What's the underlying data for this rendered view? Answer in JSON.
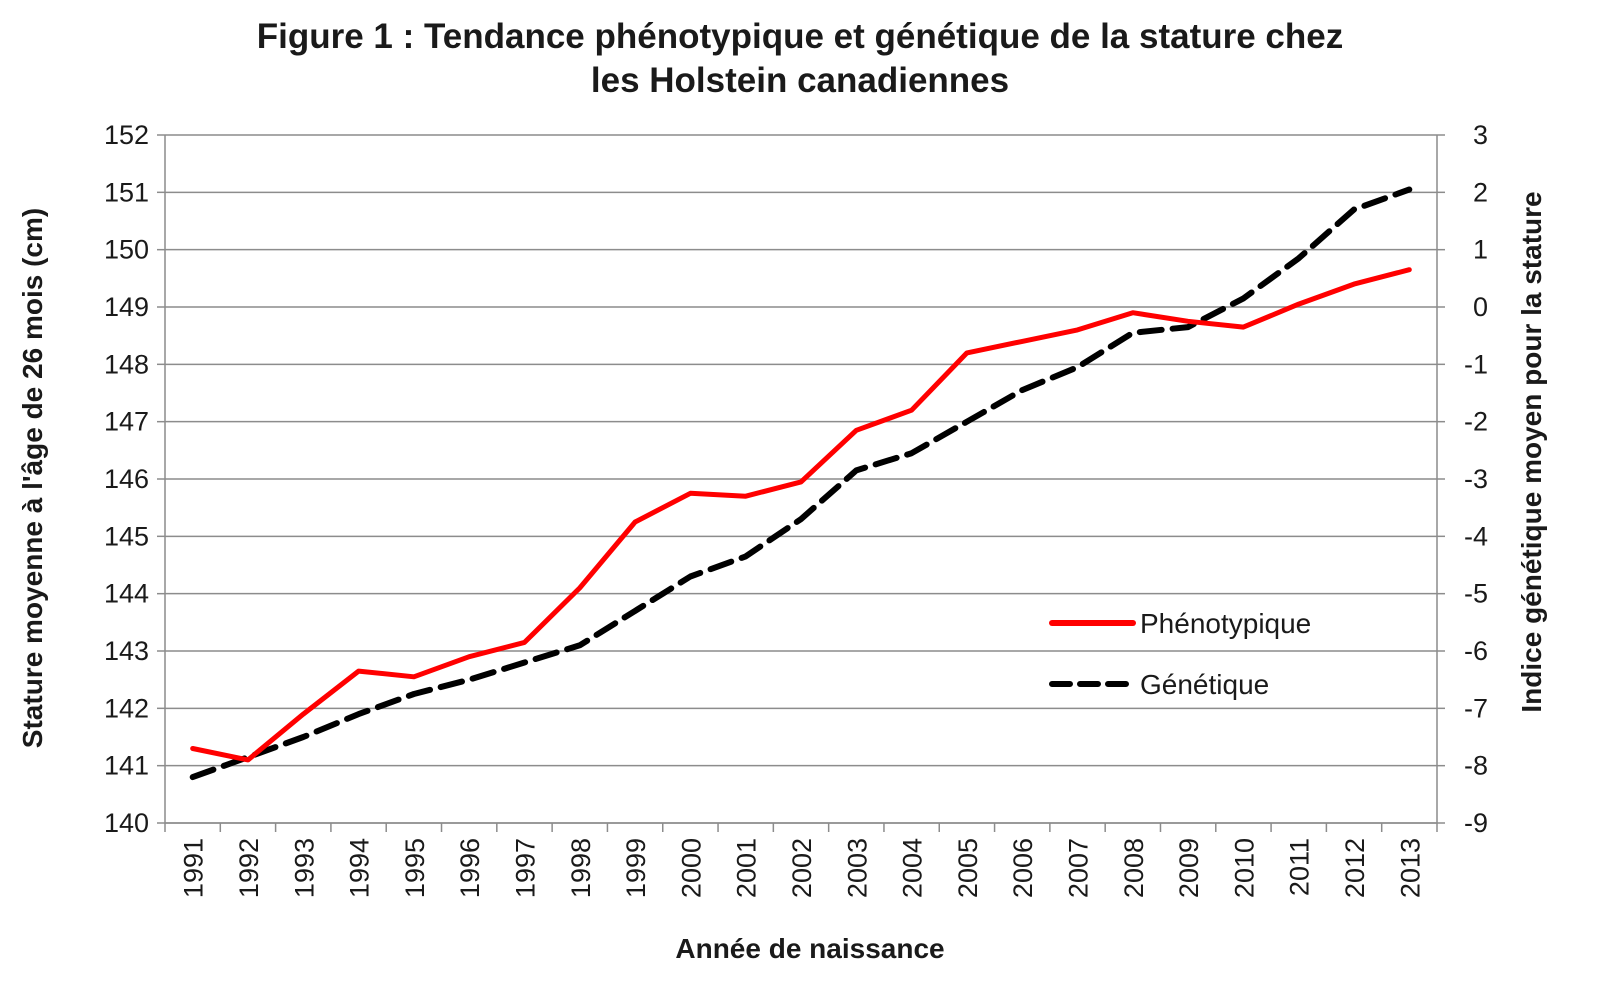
{
  "chart_data": {
    "type": "line",
    "title": "Figure 1 : Tendance phénotypique et génétique de la stature chez les Holstein canadiennes",
    "title_lines": [
      "Figure 1 : Tendance phénotypique et génétique de la stature chez",
      "les Holstein canadiennes"
    ],
    "xlabel": "Année de naissance",
    "ylabel_left": "Stature moyenne à l'âge de 26 mois (cm)",
    "ylabel_right": "Indice génétique moyen pour la stature",
    "x": [
      1991,
      1992,
      1993,
      1994,
      1995,
      1996,
      1997,
      1998,
      1999,
      2000,
      2001,
      2002,
      2003,
      2004,
      2005,
      2006,
      2007,
      2008,
      2009,
      2010,
      2011,
      2012,
      2013
    ],
    "x_labels": [
      "1991",
      "1992",
      "1993",
      "1994",
      "1995",
      "1996",
      "1997",
      "1998",
      "1999",
      "2000",
      "2001",
      "2002",
      "2003",
      "2004",
      "2005",
      "2006",
      "2007",
      "2008",
      "2009",
      "2010",
      "2011",
      "2012",
      "2013"
    ],
    "ylim_left": [
      140,
      152
    ],
    "yticks_left": [
      "140",
      "141",
      "142",
      "143",
      "144",
      "145",
      "146",
      "147",
      "148",
      "149",
      "150",
      "151",
      "152"
    ],
    "ylim_right": [
      -9,
      3
    ],
    "yticks_right": [
      "-9",
      "-8",
      "-7",
      "-6",
      "-5",
      "-4",
      "-3",
      "-2",
      "-1",
      "0",
      "1",
      "2",
      "3"
    ],
    "grid": "horizontal",
    "legend_position": "lower-right",
    "series": [
      {
        "name": "Phénotypique",
        "axis": "left",
        "color": "#ff0000",
        "style": "solid",
        "values": [
          141.3,
          141.1,
          141.9,
          142.65,
          142.55,
          142.9,
          143.15,
          144.1,
          145.25,
          145.75,
          145.7,
          145.95,
          146.85,
          147.2,
          148.2,
          148.4,
          148.6,
          148.9,
          148.75,
          148.65,
          149.05,
          149.4,
          149.65
        ]
      },
      {
        "name": "Génétique",
        "axis": "right",
        "color": "#000000",
        "style": "dashed",
        "values": [
          -8.2,
          -7.85,
          -7.5,
          -7.1,
          -6.75,
          -6.5,
          -6.2,
          -5.9,
          -5.3,
          -4.7,
          -4.35,
          -3.7,
          -2.85,
          -2.55,
          -2.0,
          -1.45,
          -1.05,
          -0.45,
          -0.35,
          0.15,
          0.85,
          1.7,
          2.05
        ]
      }
    ]
  }
}
